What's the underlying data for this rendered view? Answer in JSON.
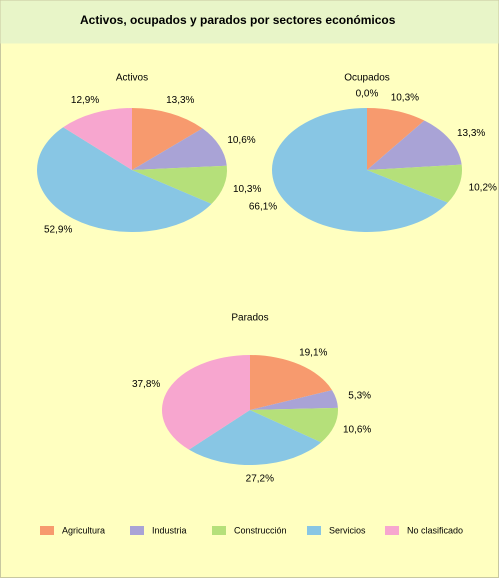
{
  "title": "Activos, ocupados y parados por sectores económicos",
  "chart_data": [
    {
      "type": "pie",
      "title": "Activos",
      "categories": [
        "Agricultura",
        "Industria",
        "Construcción",
        "Servicios",
        "No clasificado"
      ],
      "values": [
        13.3,
        10.6,
        10.3,
        52.9,
        12.9
      ],
      "value_labels": [
        "13,3%",
        "10,6%",
        "10,3%",
        "52,9%",
        "12,9%"
      ],
      "colors": [
        "#f79a6e",
        "#a9a3d6",
        "#b5e07a",
        "#88c6e4",
        "#f7a6cf"
      ]
    },
    {
      "type": "pie",
      "title": "Ocupados",
      "categories": [
        "Agricultura",
        "Industria",
        "Construcción",
        "Servicios",
        "No clasificado"
      ],
      "values": [
        10.3,
        13.3,
        10.2,
        66.1,
        0.0
      ],
      "value_labels": [
        "10,3%",
        "13,3%",
        "10,2%",
        "66,1%",
        "0,0%"
      ],
      "colors": [
        "#f79a6e",
        "#a9a3d6",
        "#b5e07a",
        "#88c6e4",
        "#f7a6cf"
      ]
    },
    {
      "type": "pie",
      "title": "Parados",
      "categories": [
        "Agricultura",
        "Industria",
        "Construcción",
        "Servicios",
        "No clasificado"
      ],
      "values": [
        19.1,
        5.3,
        10.6,
        27.2,
        37.8
      ],
      "value_labels": [
        "19,1%",
        "5,3%",
        "10,6%",
        "27,2%",
        "37,8%"
      ],
      "colors": [
        "#f79a6e",
        "#a9a3d6",
        "#b5e07a",
        "#88c6e4",
        "#f7a6cf"
      ]
    }
  ]
}
